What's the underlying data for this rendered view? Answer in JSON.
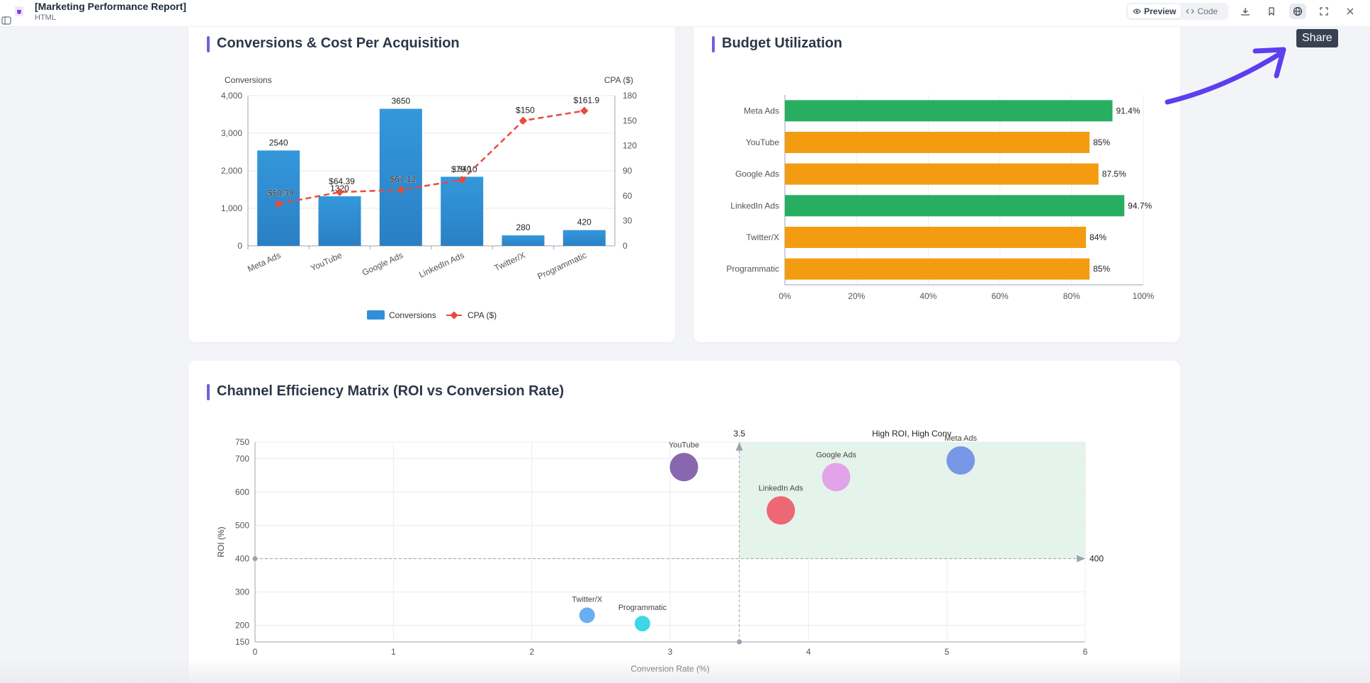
{
  "header": {
    "title": "[Marketing Performance Report]",
    "type": "HTML",
    "preview_label": "Preview",
    "code_label": "Code",
    "tooltip": "Share"
  },
  "icons": [
    "html-file-icon",
    "sidebar-toggle-icon",
    "eye-icon",
    "code-icon",
    "download-icon",
    "bookmark-icon",
    "globe-icon",
    "fullscreen-icon",
    "close-icon",
    "arrow-annotation"
  ],
  "colors": {
    "accent": "#6c63d9",
    "bar_blue": "#2f8fd8",
    "cpa_red": "#e74c3c",
    "green": "#27ae60",
    "orange": "#f39c12"
  },
  "cards": {
    "conversions_title": "Conversions & Cost Per Acquisition",
    "budget_title": "Budget Utilization",
    "matrix_title": "Channel Efficiency Matrix (ROI vs Conversion Rate)"
  },
  "chart_data": [
    {
      "type": "bar",
      "categories": [
        "Meta Ads",
        "YouTube",
        "Google Ads",
        "LinkedIn Ads",
        "Twitter/X",
        "Programmatic"
      ],
      "series": [
        {
          "name": "Conversions",
          "type": "bar",
          "values": [
            2540,
            1320,
            3650,
            1840,
            280,
            420
          ],
          "labels": [
            "2540",
            "1320",
            "3650",
            "1840",
            "280",
            "420"
          ]
        },
        {
          "name": "CPA ($)",
          "type": "line",
          "axis": "right",
          "values": [
            50.39,
            64.39,
            67.12,
            79.1,
            150,
            161.9
          ],
          "labels": [
            "$50.39",
            "$64.39",
            "$67.12",
            "$79.10",
            "$150",
            "$161.9"
          ]
        }
      ],
      "ylabel": "Conversions",
      "y2label": "CPA ($)",
      "ylim": [
        0,
        4000
      ],
      "y2lim": [
        0,
        180
      ],
      "yticks": [
        "0",
        "1,000",
        "2,000",
        "3,000",
        "4,000"
      ],
      "y2ticks": [
        "0",
        "30",
        "60",
        "90",
        "120",
        "150",
        "180"
      ],
      "legend": "bottom"
    },
    {
      "type": "bar",
      "orientation": "horizontal",
      "categories": [
        "Meta Ads",
        "YouTube",
        "Google Ads",
        "LinkedIn Ads",
        "Twitter/X",
        "Programmatic"
      ],
      "values": [
        91.4,
        85,
        87.5,
        94.7,
        84,
        85
      ],
      "labels": [
        "91.4%",
        "85%",
        "87.5%",
        "94.7%",
        "84%",
        "85%"
      ],
      "status": [
        "green",
        "orange",
        "orange",
        "green",
        "orange",
        "orange"
      ],
      "xlim": [
        0,
        100
      ],
      "xticks": [
        "0%",
        "20%",
        "40%",
        "60%",
        "80%",
        "100%"
      ]
    },
    {
      "type": "scatter",
      "points": [
        {
          "name": "Meta Ads",
          "x": 5.1,
          "y": 695,
          "color": "#6f8ee6"
        },
        {
          "name": "YouTube",
          "x": 3.1,
          "y": 675,
          "color": "#7e5aa8"
        },
        {
          "name": "Google Ads",
          "x": 4.2,
          "y": 645,
          "color": "#e39be8"
        },
        {
          "name": "LinkedIn Ads",
          "x": 3.8,
          "y": 545,
          "color": "#ee5a6a"
        },
        {
          "name": "Twitter/X",
          "x": 2.4,
          "y": 230,
          "color": "#5aa8f0"
        },
        {
          "name": "Programmatic",
          "x": 2.8,
          "y": 205,
          "color": "#2ed3e6"
        }
      ],
      "xlabel": "Conversion Rate (%)",
      "ylabel": "ROI (%)",
      "xlim": [
        0,
        6
      ],
      "ylim": [
        150,
        750
      ],
      "xticks": [
        "0",
        "1",
        "2",
        "3",
        "4",
        "5",
        "6"
      ],
      "yticks": [
        "150",
        "200",
        "300",
        "400",
        "500",
        "600",
        "700",
        "750"
      ],
      "thresholds": {
        "x": 3.5,
        "y": 400,
        "x_label": "3.5",
        "y_label": "400"
      },
      "region_label": "High ROI, High Conv"
    }
  ]
}
